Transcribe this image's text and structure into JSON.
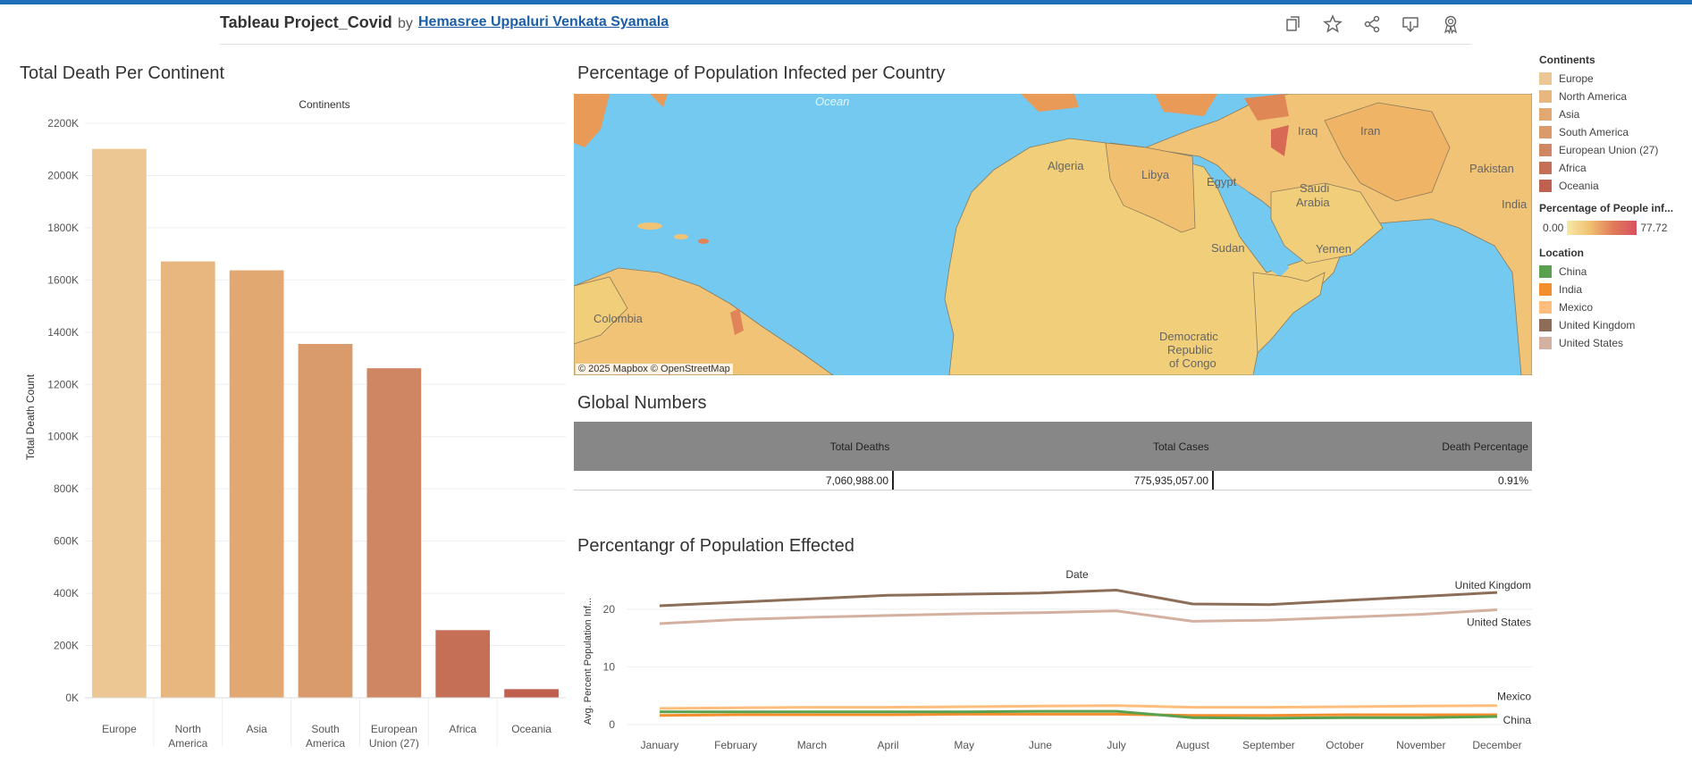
{
  "header": {
    "title": "Tableau Project_Covid",
    "by": "by",
    "author": "Hemasree Uppaluri Venkata Syamala",
    "icons": [
      "copy-icon",
      "star-icon",
      "share-icon",
      "download-icon",
      "award-icon"
    ]
  },
  "sections": {
    "death_per_continent": "Total Death Per Continent",
    "infected_map": "Percentage of Population Infected per Country",
    "global_numbers": "Global Numbers",
    "population_effected": "Percentangr of Population Effected"
  },
  "bar_chart": {
    "chart_data": {
      "type": "bar",
      "title": "Continents",
      "ylabel": "Total Death Count",
      "categories": [
        "Europe",
        "North America",
        "Asia",
        "South America",
        "European Union (27)",
        "Africa",
        "Oceania"
      ],
      "category_lines": [
        [
          "Europe"
        ],
        [
          "North",
          "America"
        ],
        [
          "Asia"
        ],
        [
          "South",
          "America"
        ],
        [
          "European",
          "Union (27)"
        ],
        [
          "Africa"
        ],
        [
          "Oceania"
        ]
      ],
      "values": [
        2102000,
        1671000,
        1637000,
        1355000,
        1262000,
        259000,
        33000
      ],
      "colors": [
        "#ecc793",
        "#e8b67f",
        "#e2a871",
        "#d99a6c",
        "#cf8663",
        "#c46f56",
        "#c0604f"
      ],
      "ylim": [
        0,
        2200000
      ],
      "yticks": [
        0,
        200000,
        400000,
        600000,
        800000,
        1000000,
        1200000,
        1400000,
        1600000,
        1800000,
        2000000,
        2200000
      ],
      "ytick_labels": [
        "0K",
        "200K",
        "400K",
        "600K",
        "800K",
        "1000K",
        "1200K",
        "1400K",
        "1600K",
        "1800K",
        "2000K",
        "2200K"
      ]
    }
  },
  "map": {
    "labels": [
      "Ocean",
      "Algeria",
      "Libya",
      "Egypt",
      "Iraq",
      "Iran",
      "Saudi",
      "Arabia",
      "Pakistan",
      "India",
      "Sudan",
      "Yemen",
      "Colombia",
      "Democratic",
      "Republic",
      "of Congo"
    ],
    "attribution": "© 2025 Mapbox  © OpenStreetMap"
  },
  "legend": {
    "continents_title": "Continents",
    "continents": [
      {
        "label": "Europe",
        "color": "#ecc793"
      },
      {
        "label": "North America",
        "color": "#e8b67f"
      },
      {
        "label": "Asia",
        "color": "#e2a871"
      },
      {
        "label": "South America",
        "color": "#d99a6c"
      },
      {
        "label": "European Union (27)",
        "color": "#cf8663"
      },
      {
        "label": "Africa",
        "color": "#c46f56"
      },
      {
        "label": "Oceania",
        "color": "#c0604f"
      }
    ],
    "percentage_title": "Percentage of People inf...",
    "percentage_min": "0.00",
    "percentage_max": "77.72",
    "location_title": "Location",
    "locations": [
      {
        "label": "China",
        "color": "#59a14f"
      },
      {
        "label": "India",
        "color": "#f28e2b"
      },
      {
        "label": "Mexico",
        "color": "#ffbe7d"
      },
      {
        "label": "United Kingdom",
        "color": "#8c6d57"
      },
      {
        "label": "United States",
        "color": "#d4b0a0"
      }
    ]
  },
  "global_numbers": {
    "headers": [
      "Total Deaths",
      "Total Cases",
      "Death Percentage"
    ],
    "values": [
      "7,060,988.00",
      "775,935,057.00",
      "0.91%"
    ]
  },
  "line_chart": {
    "chart_data": {
      "type": "line",
      "title": "Date",
      "ylabel": "Avg. Percent Population Inf...",
      "x": [
        "January",
        "February",
        "March",
        "April",
        "May",
        "June",
        "July",
        "August",
        "September",
        "October",
        "November",
        "December"
      ],
      "ylim": [
        0,
        24
      ],
      "yticks": [
        0,
        10,
        20
      ],
      "series": [
        {
          "name": "United Kingdom",
          "color": "#8c6d57",
          "values": [
            20.6,
            21.2,
            21.8,
            22.4,
            22.6,
            22.8,
            23.3,
            20.9,
            20.8,
            21.5,
            22.2,
            22.9
          ]
        },
        {
          "name": "United States",
          "color": "#d4b0a0",
          "values": [
            17.5,
            18.2,
            18.6,
            18.9,
            19.2,
            19.4,
            19.7,
            17.9,
            18.1,
            18.6,
            19.1,
            19.9
          ]
        },
        {
          "name": "Mexico",
          "color": "#ffbe7d",
          "values": [
            2.8,
            2.9,
            3.0,
            3.0,
            3.1,
            3.2,
            3.3,
            3.0,
            3.0,
            3.1,
            3.2,
            3.3
          ]
        },
        {
          "name": "India",
          "color": "#f28e2b",
          "values": [
            1.6,
            1.7,
            1.7,
            1.7,
            1.8,
            1.8,
            1.8,
            1.6,
            1.6,
            1.7,
            1.7,
            1.7
          ]
        },
        {
          "name": "China",
          "color": "#59a14f",
          "values": [
            2.2,
            2.2,
            2.2,
            2.2,
            2.2,
            2.3,
            2.3,
            1.2,
            1.1,
            1.2,
            1.2,
            1.4
          ]
        }
      ]
    }
  }
}
